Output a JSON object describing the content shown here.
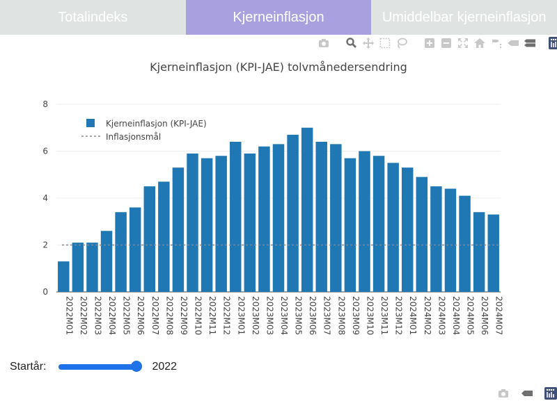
{
  "tabs": [
    {
      "label": "Totalindeks",
      "active": false
    },
    {
      "label": "Kjerneinflasjon",
      "active": true
    },
    {
      "label": "Umiddelbar kjerneinflasjon",
      "active": false
    }
  ],
  "colors": {
    "tab_bg": "#dfe3e1",
    "tab_active_bg": "#a9a0e0",
    "bar": "#1f77b4",
    "target_line": "#888888",
    "slider": "#1e73e8",
    "modebar_icon": "#c8c8c8",
    "modebar_icon_active": "#6f6f6f"
  },
  "modebar_icons": [
    "camera-icon",
    "zoom-icon",
    "pan-icon",
    "box-select-icon",
    "lasso-icon",
    "zoom-in-icon",
    "zoom-out-icon",
    "autoscale-icon",
    "home-icon",
    "spike-lines-icon",
    "hover-closest-icon",
    "hover-compare-icon",
    "plotly-logo-icon"
  ],
  "bottom_modebar_icons": [
    "camera-icon",
    "hover-icon",
    "plotly-logo-icon"
  ],
  "chart_data": {
    "type": "bar",
    "title": "Kjerneinflasjon (KPI-JAE) tolvmånedersendring",
    "xlabel": "",
    "ylabel": "",
    "ylim": [
      0,
      8
    ],
    "yticks": [
      0,
      2,
      4,
      6,
      8
    ],
    "grid": true,
    "legend_position": "top-left",
    "categories": [
      "2022M01",
      "2022M02",
      "2022M03",
      "2022M04",
      "2022M05",
      "2022M06",
      "2022M07",
      "2022M08",
      "2022M09",
      "2022M10",
      "2022M11",
      "2022M12",
      "2023M01",
      "2023M02",
      "2023M03",
      "2023M04",
      "2023M05",
      "2023M06",
      "2023M07",
      "2023M08",
      "2023M09",
      "2023M10",
      "2023M11",
      "2023M12",
      "2024M01",
      "2024M02",
      "2024M03",
      "2024M04",
      "2024M05",
      "2024M06",
      "2024M07"
    ],
    "series": [
      {
        "name": "Kjerneinflasjon (KPI-JAE)",
        "values": [
          1.3,
          2.1,
          2.1,
          2.6,
          3.4,
          3.6,
          4.5,
          4.7,
          5.3,
          5.9,
          5.7,
          5.8,
          6.4,
          5.9,
          6.2,
          6.3,
          6.7,
          7.0,
          6.4,
          6.3,
          5.7,
          6.0,
          5.8,
          5.5,
          5.3,
          4.9,
          4.5,
          4.4,
          4.1,
          3.4,
          3.3
        ]
      }
    ],
    "reference_lines": [
      {
        "name": "Inflasjonsmål",
        "y": 2,
        "style": "dashed"
      }
    ]
  },
  "slider": {
    "label": "Startår:",
    "value": "2022",
    "min": 2022,
    "max": 2024,
    "fill_fraction": 0.93
  }
}
